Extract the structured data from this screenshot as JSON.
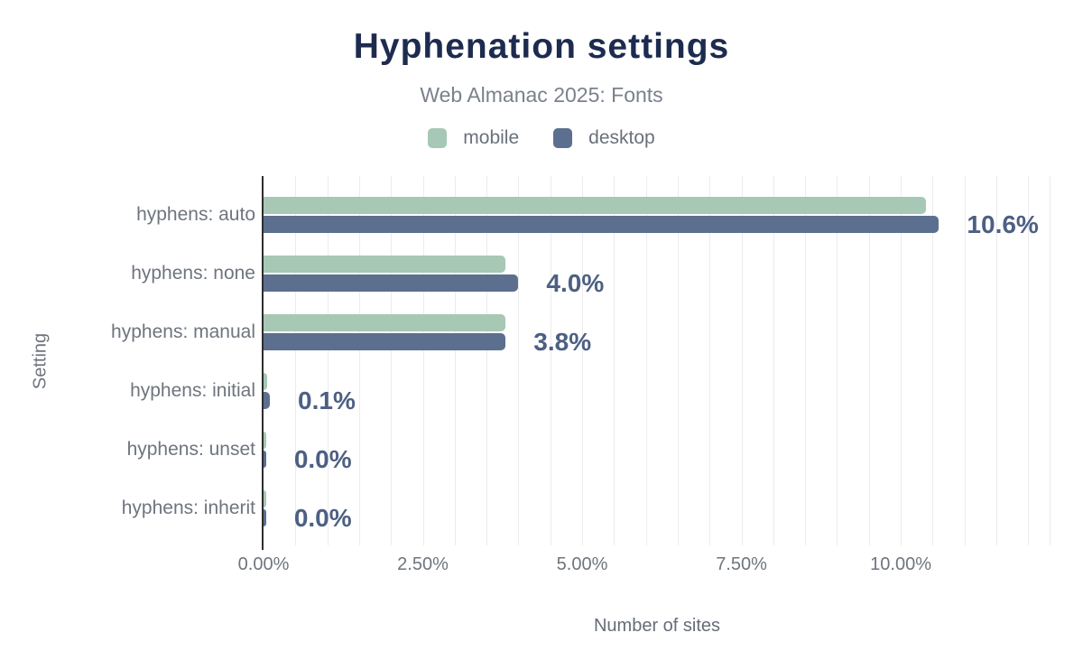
{
  "chart_data": {
    "type": "bar",
    "orientation": "horizontal",
    "title": "Hyphenation settings",
    "subtitle": "Web Almanac 2025: Fonts",
    "xlabel": "Number of sites",
    "ylabel": "Setting",
    "categories": [
      "hyphens: auto",
      "hyphens: none",
      "hyphens: manual",
      "hyphens: initial",
      "hyphens: unset",
      "hyphens: inherit"
    ],
    "series": [
      {
        "name": "mobile",
        "color": "#a6c8b5",
        "values": [
          10.4,
          3.8,
          3.8,
          0.06,
          0.04,
          0.04
        ]
      },
      {
        "name": "desktop",
        "color": "#5c6f8f",
        "values": [
          10.6,
          4.0,
          3.8,
          0.1,
          0.04,
          0.04
        ]
      }
    ],
    "value_labels": [
      "10.6%",
      "4.0%",
      "3.8%",
      "0.1%",
      "0.0%",
      "0.0%"
    ],
    "x_ticks": [
      {
        "value": 0,
        "label": "0.00%"
      },
      {
        "value": 2.5,
        "label": "2.50%"
      },
      {
        "value": 5,
        "label": "5.00%"
      },
      {
        "value": 7.5,
        "label": "7.50%"
      },
      {
        "value": 10,
        "label": "10.00%"
      }
    ],
    "xlim": [
      0,
      12.35
    ],
    "grid_step": 0.5,
    "grid_on": true,
    "legend_position": "top-center",
    "colors": {
      "title": "#1d2b4f",
      "subtitle": "#7a818c",
      "axis_text": "#6e757e",
      "annotation": "#4d6083",
      "axis_line": "#2d2d2d",
      "gridline": "#ececec",
      "background": "#ffffff"
    }
  }
}
